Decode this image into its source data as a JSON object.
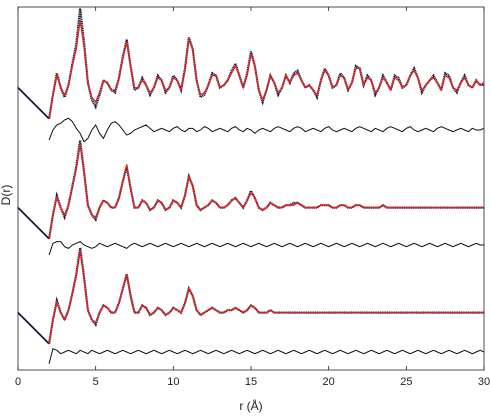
{
  "chart_data": {
    "type": "line",
    "title": "",
    "xlabel": "r (Å)",
    "ylabel": "D(r)",
    "xlim": [
      0,
      30
    ],
    "xticks": [
      0,
      5,
      10,
      15,
      20,
      25,
      30
    ],
    "xtick_labels": [
      "0",
      "5",
      "10",
      "15",
      "20",
      "25",
      "30"
    ],
    "yticks": [],
    "grid": false,
    "legend": "none",
    "colors": {
      "observed": "#1a1a3a",
      "calculated": "#e0201c",
      "difference": "#111111",
      "axes": "#222222"
    },
    "x": [
      2.0,
      2.25,
      2.5,
      2.75,
      3.0,
      3.25,
      3.5,
      3.75,
      4.0,
      4.25,
      4.5,
      4.75,
      5.0,
      5.25,
      5.5,
      5.75,
      6.0,
      6.25,
      6.5,
      6.75,
      7.0,
      7.25,
      7.5,
      7.75,
      8.0,
      8.25,
      8.5,
      8.75,
      9.0,
      9.25,
      9.5,
      9.75,
      10.0,
      10.25,
      10.5,
      10.75,
      11.0,
      11.25,
      11.5,
      11.75,
      12.0,
      12.25,
      12.5,
      12.75,
      13.0,
      13.25,
      13.5,
      13.75,
      14.0,
      14.25,
      14.5,
      14.75,
      15.0,
      15.25,
      15.5,
      15.75,
      16.0,
      16.25,
      16.5,
      16.75,
      17.0,
      17.25,
      17.5,
      17.75,
      18.0,
      18.25,
      18.5,
      18.75,
      19.0,
      19.25,
      19.5,
      19.75,
      20.0,
      20.25,
      20.5,
      20.75,
      21.0,
      21.25,
      21.5,
      21.75,
      22.0,
      22.25,
      22.5,
      22.75,
      23.0,
      23.25,
      23.5,
      23.75,
      24.0,
      24.25,
      24.5,
      24.75,
      25.0,
      25.25,
      25.5,
      25.75,
      26.0,
      26.25,
      26.5,
      26.75,
      27.0,
      27.25,
      27.5,
      27.75,
      28.0,
      28.25,
      28.5,
      28.75,
      29.0,
      29.25,
      29.5,
      29.75,
      30.0
    ],
    "panels": [
      {
        "observed": [
          -0.6,
          -0.1,
          0.35,
          0.05,
          -0.15,
          0.1,
          0.55,
          0.95,
          1.7,
          1.0,
          0.15,
          -0.2,
          -0.35,
          -0.1,
          0.2,
          0.15,
          0.0,
          -0.05,
          0.25,
          0.7,
          1.05,
          0.5,
          0.0,
          0.05,
          0.25,
          0.1,
          -0.1,
          0.05,
          0.3,
          0.2,
          -0.05,
          0.05,
          0.3,
          0.2,
          0.0,
          0.45,
          1.1,
          0.85,
          0.2,
          -0.15,
          -0.1,
          0.1,
          0.35,
          0.3,
          0.05,
          0.1,
          0.2,
          0.4,
          0.55,
          0.3,
          0.05,
          0.35,
          0.8,
          0.5,
          0.0,
          -0.25,
          0.0,
          0.3,
          0.15,
          -0.1,
          0.05,
          0.3,
          0.15,
          0.35,
          0.4,
          0.2,
          0.05,
          0.1,
          0.0,
          -0.15,
          0.2,
          0.45,
          0.3,
          0.05,
          0.1,
          0.35,
          0.25,
          0.0,
          0.15,
          0.5,
          0.45,
          0.1,
          0.3,
          0.2,
          -0.1,
          0.05,
          0.3,
          0.15,
          0.0,
          0.3,
          0.25,
          0.05,
          0.1,
          0.3,
          0.45,
          0.25,
          -0.05,
          0.1,
          0.2,
          0.3,
          0.15,
          0.0,
          0.35,
          0.3,
          0.05,
          -0.05,
          0.15,
          0.3,
          0.1,
          0.05,
          0.2,
          0.1,
          0.15
        ],
        "calculated": [
          -0.6,
          -0.1,
          0.3,
          0.05,
          -0.1,
          0.1,
          0.5,
          0.85,
          1.45,
          0.9,
          0.15,
          -0.15,
          -0.25,
          -0.05,
          0.2,
          0.15,
          0.0,
          0.0,
          0.25,
          0.65,
          1.0,
          0.5,
          0.05,
          0.05,
          0.2,
          0.1,
          -0.05,
          0.05,
          0.25,
          0.2,
          0.0,
          0.05,
          0.25,
          0.2,
          0.0,
          0.4,
          1.05,
          0.85,
          0.2,
          -0.1,
          -0.05,
          0.1,
          0.3,
          0.3,
          0.05,
          0.1,
          0.2,
          0.35,
          0.5,
          0.3,
          0.05,
          0.3,
          0.75,
          0.5,
          0.0,
          -0.2,
          0.0,
          0.3,
          0.15,
          -0.05,
          0.05,
          0.3,
          0.15,
          0.3,
          0.35,
          0.2,
          0.05,
          0.1,
          0.0,
          -0.1,
          0.2,
          0.4,
          0.3,
          0.05,
          0.1,
          0.3,
          0.25,
          0.0,
          0.15,
          0.45,
          0.45,
          0.1,
          0.25,
          0.2,
          -0.05,
          0.05,
          0.25,
          0.15,
          0.0,
          0.25,
          0.2,
          0.05,
          0.1,
          0.3,
          0.4,
          0.25,
          0.0,
          0.1,
          0.2,
          0.25,
          0.15,
          0.0,
          0.3,
          0.25,
          0.05,
          0.0,
          0.15,
          0.25,
          0.1,
          0.05,
          0.2,
          0.1,
          0.1
        ],
        "difference": [
          -0.3,
          0.0,
          0.15,
          0.2,
          0.3,
          0.35,
          0.25,
          0.05,
          -0.1,
          -0.35,
          -0.25,
          0.0,
          0.15,
          -0.1,
          -0.25,
          0.0,
          0.2,
          0.25,
          0.15,
          0.0,
          -0.15,
          -0.1,
          0.0,
          0.05,
          0.1,
          0.15,
          0.05,
          -0.05,
          0.0,
          0.05,
          0.0,
          -0.05,
          0.05,
          0.1,
          0.0,
          -0.05,
          0.05,
          0.05,
          -0.05,
          0.0,
          0.1,
          0.05,
          -0.05,
          0.0,
          0.05,
          0.0,
          -0.05,
          0.05,
          0.1,
          0.0,
          -0.05,
          0.05,
          0.0,
          -0.1,
          0.0,
          0.05,
          0.0,
          -0.05,
          0.05,
          0.1,
          0.05,
          0.0,
          -0.05,
          0.05,
          0.1,
          0.05,
          -0.05,
          0.0,
          0.05,
          0.0,
          -0.05,
          0.05,
          0.1,
          0.0,
          -0.05,
          0.0,
          0.05,
          0.0,
          -0.05,
          0.05,
          0.1,
          0.05,
          0.0,
          -0.05,
          0.05,
          0.0,
          -0.05,
          0.05,
          0.1,
          0.05,
          0.0,
          -0.05,
          0.05,
          0.1,
          0.0,
          -0.05,
          0.0,
          0.05,
          0.0,
          -0.05,
          0.05,
          0.1,
          0.05,
          0.0,
          -0.05,
          0.0,
          0.05,
          0.0,
          -0.05,
          0.05,
          0.0,
          0.0,
          0.05
        ]
      },
      {
        "observed": [
          -0.6,
          -0.1,
          0.3,
          0.05,
          -0.15,
          0.1,
          0.5,
          0.9,
          1.45,
          0.8,
          0.1,
          -0.1,
          -0.2,
          0.05,
          0.2,
          0.15,
          0.05,
          0.05,
          0.25,
          0.6,
          0.9,
          0.45,
          0.05,
          0.05,
          0.2,
          0.15,
          0.0,
          0.05,
          0.2,
          0.15,
          0.0,
          0.05,
          0.2,
          0.15,
          0.05,
          0.3,
          0.7,
          0.5,
          0.1,
          0.0,
          0.05,
          0.1,
          0.2,
          0.15,
          0.05,
          0.05,
          0.1,
          0.2,
          0.25,
          0.15,
          0.05,
          0.2,
          0.4,
          0.25,
          0.05,
          0.0,
          0.05,
          0.15,
          0.1,
          0.05,
          0.05,
          0.1,
          0.1,
          0.15,
          0.15,
          0.1,
          0.05,
          0.05,
          0.05,
          0.05,
          0.1,
          0.1,
          0.1,
          0.05,
          0.05,
          0.1,
          0.1,
          0.05,
          0.05,
          0.1,
          0.1,
          0.05,
          0.05,
          0.05,
          0.05,
          0.05,
          0.1,
          0.05,
          0.05,
          0.05,
          0.05,
          0.05,
          0.05,
          0.05,
          0.05,
          0.05,
          0.05,
          0.05,
          0.05,
          0.05,
          0.05,
          0.05,
          0.05,
          0.05,
          0.05,
          0.05,
          0.05,
          0.05,
          0.05,
          0.05,
          0.05,
          0.05,
          0.05
        ],
        "calculated": [
          -0.6,
          -0.1,
          0.25,
          0.05,
          -0.1,
          0.1,
          0.45,
          0.85,
          1.35,
          0.8,
          0.1,
          -0.1,
          -0.15,
          0.05,
          0.2,
          0.15,
          0.05,
          0.05,
          0.25,
          0.6,
          0.95,
          0.45,
          0.05,
          0.05,
          0.2,
          0.15,
          0.0,
          0.05,
          0.2,
          0.15,
          0.0,
          0.05,
          0.2,
          0.15,
          0.05,
          0.3,
          0.7,
          0.5,
          0.1,
          0.0,
          0.05,
          0.1,
          0.2,
          0.15,
          0.05,
          0.05,
          0.1,
          0.2,
          0.25,
          0.15,
          0.05,
          0.2,
          0.35,
          0.25,
          0.05,
          0.0,
          0.05,
          0.15,
          0.1,
          0.05,
          0.05,
          0.1,
          0.1,
          0.1,
          0.15,
          0.1,
          0.05,
          0.05,
          0.05,
          0.05,
          0.1,
          0.1,
          0.1,
          0.05,
          0.05,
          0.1,
          0.1,
          0.05,
          0.05,
          0.1,
          0.1,
          0.05,
          0.05,
          0.05,
          0.05,
          0.05,
          0.1,
          0.05,
          0.05,
          0.05,
          0.05,
          0.05,
          0.05,
          0.05,
          0.05,
          0.05,
          0.05,
          0.05,
          0.05,
          0.05,
          0.05,
          0.05,
          0.05,
          0.05,
          0.05,
          0.05,
          0.05,
          0.05,
          0.05,
          0.05,
          0.05,
          0.05,
          0.05
        ],
        "difference": [
          -0.3,
          0.05,
          0.1,
          0.1,
          -0.05,
          -0.1,
          0.0,
          0.05,
          0.1,
          0.0,
          -0.05,
          -0.1,
          -0.05,
          0.05,
          0.0,
          -0.05,
          0.0,
          0.05,
          0.0,
          -0.05,
          -0.1,
          0.0,
          0.05,
          0.0,
          -0.05,
          0.0,
          0.05,
          0.0,
          -0.05,
          0.0,
          0.05,
          0.0,
          -0.05,
          0.0,
          0.05,
          0.0,
          -0.05,
          0.0,
          0.05,
          0.0,
          -0.05,
          0.0,
          0.05,
          0.0,
          -0.05,
          0.0,
          0.05,
          0.0,
          -0.05,
          0.0,
          0.05,
          0.0,
          -0.05,
          0.0,
          0.05,
          0.0,
          -0.05,
          0.0,
          0.05,
          0.0,
          -0.05,
          0.0,
          0.05,
          0.0,
          -0.05,
          0.0,
          0.05,
          0.0,
          -0.05,
          0.0,
          0.05,
          0.0,
          -0.05,
          0.0,
          0.05,
          0.0,
          -0.05,
          0.0,
          0.05,
          0.0,
          -0.05,
          0.0,
          0.05,
          0.0,
          -0.05,
          0.0,
          0.05,
          0.0,
          -0.05,
          0.0,
          0.05,
          0.0,
          -0.05,
          0.0,
          0.05,
          0.0,
          -0.05,
          0.0,
          0.05,
          0.0,
          -0.05,
          0.0,
          0.05,
          0.0,
          -0.05,
          0.0,
          0.05,
          0.0,
          -0.05,
          0.0,
          0.05,
          0.0,
          0.0
        ]
      },
      {
        "observed": [
          -0.6,
          -0.1,
          0.3,
          0.05,
          -0.1,
          0.1,
          0.45,
          0.85,
          1.4,
          0.8,
          0.1,
          -0.1,
          -0.2,
          0.05,
          0.2,
          0.15,
          0.05,
          0.05,
          0.25,
          0.55,
          0.85,
          0.4,
          0.05,
          0.05,
          0.2,
          0.15,
          0.0,
          0.05,
          0.15,
          0.1,
          0.0,
          0.05,
          0.15,
          0.1,
          0.05,
          0.25,
          0.55,
          0.4,
          0.1,
          0.0,
          0.05,
          0.1,
          0.15,
          0.1,
          0.05,
          0.05,
          0.1,
          0.1,
          0.15,
          0.1,
          0.05,
          0.1,
          0.2,
          0.15,
          0.05,
          0.05,
          0.05,
          0.1,
          0.05,
          0.05,
          0.05,
          0.05,
          0.05,
          0.05,
          0.05,
          0.05,
          0.05,
          0.05,
          0.05,
          0.05,
          0.05,
          0.05,
          0.05,
          0.05,
          0.05,
          0.05,
          0.05,
          0.05,
          0.05,
          0.05,
          0.05,
          0.05,
          0.05,
          0.05,
          0.05,
          0.05,
          0.05,
          0.05,
          0.05,
          0.05,
          0.05,
          0.05,
          0.05,
          0.05,
          0.05,
          0.05,
          0.05,
          0.05,
          0.05,
          0.05,
          0.05,
          0.05,
          0.05,
          0.05,
          0.05,
          0.05,
          0.05,
          0.05,
          0.05,
          0.05,
          0.05,
          0.05,
          0.05
        ],
        "calculated": [
          -0.6,
          -0.1,
          0.25,
          0.05,
          -0.1,
          0.1,
          0.45,
          0.8,
          1.35,
          0.75,
          0.1,
          -0.1,
          -0.15,
          0.05,
          0.2,
          0.15,
          0.05,
          0.05,
          0.25,
          0.55,
          0.85,
          0.4,
          0.05,
          0.05,
          0.2,
          0.15,
          0.0,
          0.05,
          0.15,
          0.1,
          0.0,
          0.05,
          0.15,
          0.1,
          0.05,
          0.25,
          0.55,
          0.4,
          0.1,
          0.0,
          0.05,
          0.1,
          0.15,
          0.1,
          0.05,
          0.05,
          0.1,
          0.1,
          0.15,
          0.1,
          0.05,
          0.1,
          0.2,
          0.15,
          0.05,
          0.05,
          0.05,
          0.1,
          0.05,
          0.05,
          0.05,
          0.05,
          0.05,
          0.05,
          0.05,
          0.05,
          0.05,
          0.05,
          0.05,
          0.05,
          0.05,
          0.05,
          0.05,
          0.05,
          0.05,
          0.05,
          0.05,
          0.05,
          0.05,
          0.05,
          0.05,
          0.05,
          0.05,
          0.05,
          0.05,
          0.05,
          0.05,
          0.05,
          0.05,
          0.05,
          0.05,
          0.05,
          0.05,
          0.05,
          0.05,
          0.05,
          0.05,
          0.05,
          0.05,
          0.05,
          0.05,
          0.05,
          0.05,
          0.05,
          0.05,
          0.05,
          0.05,
          0.05,
          0.05,
          0.05,
          0.05,
          0.05,
          0.05
        ],
        "difference": [
          -0.35,
          0.1,
          0.05,
          -0.05,
          0.0,
          0.05,
          0.0,
          -0.05,
          0.05,
          0.0,
          -0.05,
          0.05,
          0.0,
          -0.05,
          0.0,
          0.05,
          0.0,
          -0.05,
          0.0,
          0.05,
          0.0,
          -0.05,
          0.0,
          0.05,
          0.0,
          -0.05,
          0.0,
          0.05,
          0.0,
          -0.05,
          0.0,
          0.05,
          0.0,
          -0.05,
          0.0,
          0.05,
          0.0,
          -0.05,
          0.0,
          0.05,
          0.0,
          -0.05,
          0.0,
          0.05,
          0.0,
          -0.05,
          0.0,
          0.05,
          0.0,
          -0.05,
          0.0,
          0.05,
          0.0,
          -0.05,
          0.0,
          0.05,
          0.0,
          -0.05,
          0.0,
          0.05,
          0.0,
          -0.05,
          0.0,
          0.05,
          0.0,
          -0.05,
          0.0,
          0.05,
          0.0,
          -0.05,
          0.0,
          0.05,
          0.0,
          -0.05,
          0.0,
          0.05,
          0.0,
          -0.05,
          0.0,
          0.05,
          0.0,
          -0.05,
          0.0,
          0.05,
          0.0,
          -0.05,
          0.0,
          0.05,
          0.0,
          -0.05,
          0.0,
          0.05,
          0.0,
          -0.05,
          0.0,
          0.05,
          0.0,
          -0.05,
          0.0,
          0.05,
          0.0,
          -0.05,
          0.0,
          0.05,
          0.0,
          -0.05,
          0.0,
          0.05,
          0.0,
          -0.05,
          0.0,
          0.05,
          0.0,
          0.0,
          0.0
        ]
      }
    ]
  }
}
